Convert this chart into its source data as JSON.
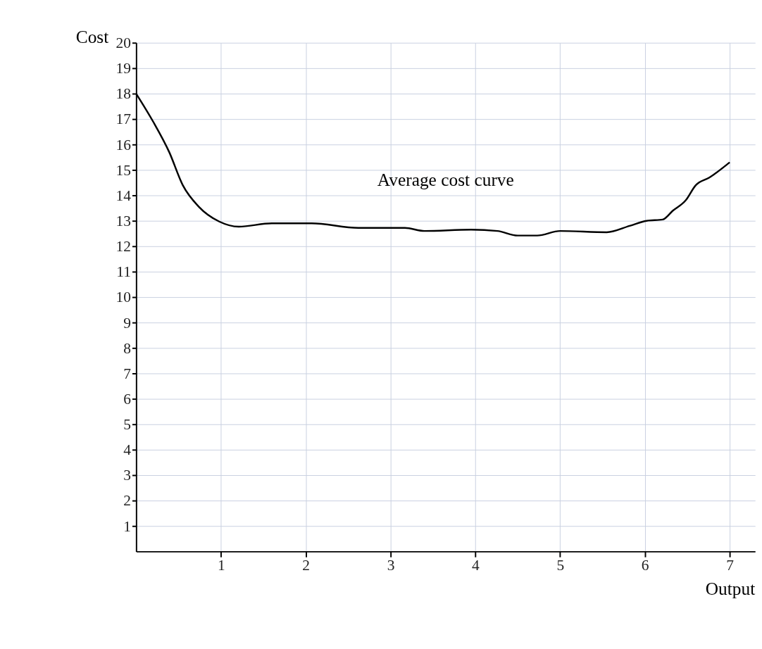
{
  "chart_data": {
    "type": "line",
    "xlabel": "Output",
    "ylabel": "Cost",
    "x": [
      0,
      0.2,
      0.39,
      0.55,
      0.74,
      0.98,
      1.21,
      1.6,
      2.07,
      2.62,
      3.17,
      3.4,
      3.95,
      4.26,
      4.5,
      4.73,
      5.0,
      5.55,
      5.82,
      6.02,
      6.21,
      6.33,
      6.48,
      6.6,
      6.76,
      7.0
    ],
    "series": [
      {
        "color": "#000000",
        "values": [
          18.0,
          16.9,
          15.7,
          14.4,
          13.55,
          12.97,
          12.77,
          12.9,
          12.9,
          12.72,
          12.72,
          12.6,
          12.65,
          12.6,
          12.42,
          12.42,
          12.6,
          12.55,
          12.8,
          13.0,
          13.05,
          13.4,
          13.8,
          14.4,
          14.7,
          15.3
        ]
      }
    ],
    "xlim": [
      0,
      7.3
    ],
    "ylim": [
      0,
      20
    ],
    "xticks": [
      1,
      2,
      3,
      4,
      5,
      6,
      7
    ],
    "yticks": [
      1,
      2,
      3,
      4,
      5,
      6,
      7,
      8,
      9,
      10,
      11,
      12,
      13,
      14,
      15,
      16,
      17,
      18,
      19,
      20
    ],
    "grid": true,
    "marker": "none",
    "line_style": "solid",
    "annotations": [
      "Average cost curve"
    ]
  }
}
